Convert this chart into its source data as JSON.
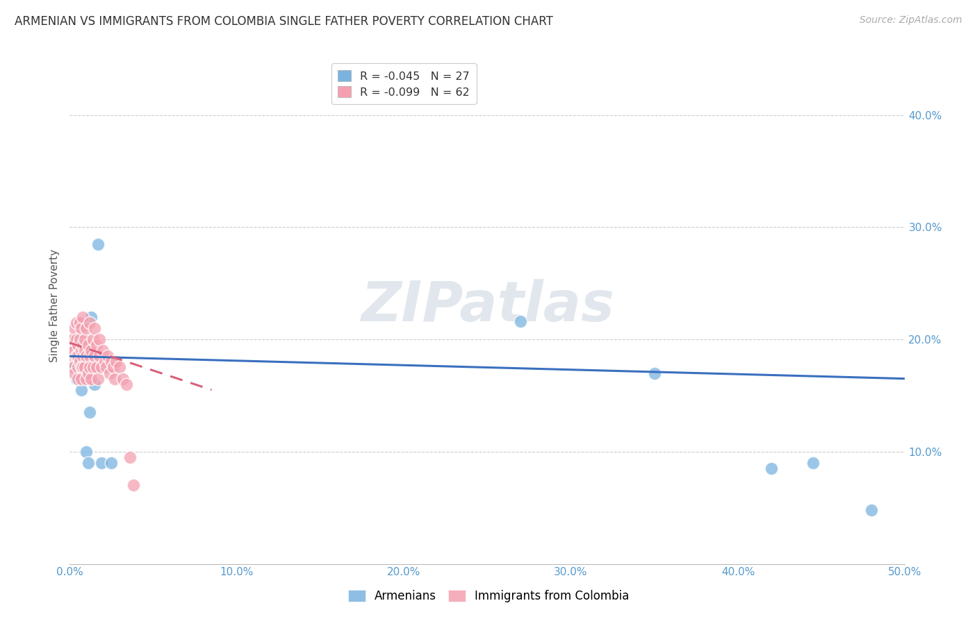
{
  "title": "ARMENIAN VS IMMIGRANTS FROM COLOMBIA SINGLE FATHER POVERTY CORRELATION CHART",
  "source": "Source: ZipAtlas.com",
  "ylabel": "Single Father Poverty",
  "xlim": [
    0.0,
    0.5
  ],
  "ylim": [
    0.0,
    0.46
  ],
  "xticks": [
    0.0,
    0.1,
    0.2,
    0.3,
    0.4,
    0.5
  ],
  "yticks": [
    0.1,
    0.2,
    0.3,
    0.4
  ],
  "xticklabels": [
    "0.0%",
    "10.0%",
    "20.0%",
    "30.0%",
    "40.0%",
    "50.0%"
  ],
  "yticklabels_right": [
    "10.0%",
    "20.0%",
    "30.0%",
    "40.0%"
  ],
  "armenian_color": "#7ab3e0",
  "colombia_color": "#f4a0b0",
  "armenian_line_color": "#3a6fbf",
  "colombia_line_color": "#d9607a",
  "background_color": "#ffffff",
  "grid_color": "#cccccc",
  "title_color": "#333333",
  "axis_label_color": "#555555",
  "tick_color": "#5599cc",
  "watermark": "ZIPatlas",
  "legend_arm_label": "R = -0.045   N = 27",
  "legend_col_label": "R = -0.099   N = 62",
  "armenian_x": [
    0.002,
    0.003,
    0.003,
    0.004,
    0.004,
    0.005,
    0.005,
    0.006,
    0.006,
    0.007,
    0.007,
    0.008,
    0.009,
    0.01,
    0.011,
    0.012,
    0.013,
    0.015,
    0.017,
    0.019,
    0.021,
    0.025,
    0.27,
    0.35,
    0.42,
    0.445,
    0.48
  ],
  "armenian_y": [
    0.19,
    0.2,
    0.175,
    0.185,
    0.165,
    0.195,
    0.175,
    0.215,
    0.195,
    0.18,
    0.155,
    0.17,
    0.175,
    0.1,
    0.09,
    0.135,
    0.22,
    0.16,
    0.285,
    0.09,
    0.175,
    0.09,
    0.216,
    0.17,
    0.085,
    0.09,
    0.048
  ],
  "colombia_x": [
    0.001,
    0.002,
    0.002,
    0.002,
    0.003,
    0.003,
    0.003,
    0.004,
    0.004,
    0.004,
    0.005,
    0.005,
    0.005,
    0.005,
    0.006,
    0.006,
    0.006,
    0.007,
    0.007,
    0.007,
    0.007,
    0.008,
    0.008,
    0.008,
    0.008,
    0.009,
    0.009,
    0.009,
    0.01,
    0.01,
    0.01,
    0.011,
    0.011,
    0.012,
    0.012,
    0.012,
    0.013,
    0.013,
    0.014,
    0.014,
    0.015,
    0.015,
    0.016,
    0.016,
    0.017,
    0.018,
    0.018,
    0.019,
    0.02,
    0.021,
    0.022,
    0.023,
    0.024,
    0.025,
    0.026,
    0.027,
    0.028,
    0.03,
    0.032,
    0.034,
    0.036,
    0.038
  ],
  "colombia_y": [
    0.195,
    0.185,
    0.2,
    0.175,
    0.21,
    0.19,
    0.17,
    0.2,
    0.185,
    0.215,
    0.175,
    0.195,
    0.165,
    0.185,
    0.2,
    0.18,
    0.215,
    0.19,
    0.175,
    0.21,
    0.165,
    0.195,
    0.185,
    0.175,
    0.22,
    0.19,
    0.175,
    0.2,
    0.185,
    0.165,
    0.21,
    0.195,
    0.17,
    0.185,
    0.175,
    0.215,
    0.19,
    0.165,
    0.2,
    0.175,
    0.185,
    0.21,
    0.175,
    0.195,
    0.165,
    0.185,
    0.2,
    0.175,
    0.19,
    0.18,
    0.175,
    0.185,
    0.17,
    0.18,
    0.175,
    0.165,
    0.18,
    0.175,
    0.165,
    0.16,
    0.095,
    0.07
  ],
  "arm_trend_x": [
    0.0,
    0.5
  ],
  "arm_trend_y": [
    0.185,
    0.165
  ],
  "col_trend_x": [
    0.0,
    0.085
  ],
  "col_trend_y": [
    0.197,
    0.155
  ]
}
